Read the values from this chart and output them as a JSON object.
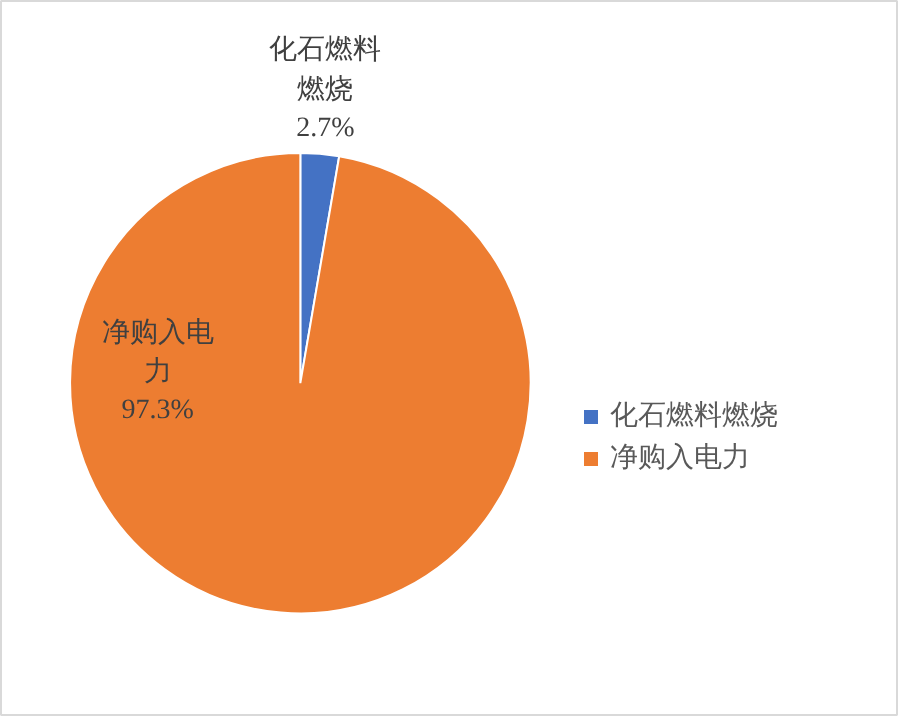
{
  "chart_data": {
    "type": "pie",
    "categories": [
      "化石燃料燃烧",
      "净购入电力"
    ],
    "values": [
      2.7,
      97.3
    ],
    "colors": [
      "#4472c4",
      "#ed7d31"
    ],
    "value_labels": [
      "2.7%",
      "97.3%"
    ],
    "legend": "right"
  }
}
